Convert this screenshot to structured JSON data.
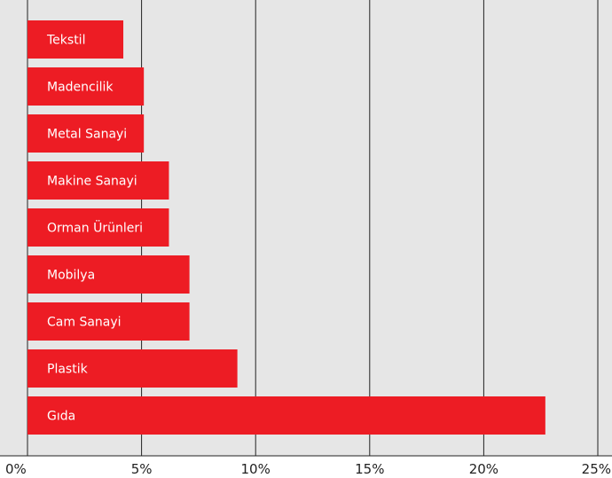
{
  "chart_data": {
    "type": "bar",
    "orientation": "horizontal",
    "categories": [
      "Tekstil",
      "Madencilik",
      "Metal Sanayi",
      "Makine Sanayi",
      "Orman Ürünleri",
      "Mobilya",
      "Cam Sanayi",
      "Plastik",
      "Gıda"
    ],
    "values": [
      4.2,
      5.1,
      5.1,
      6.2,
      6.2,
      7.1,
      7.1,
      9.2,
      22.7
    ],
    "xlim": [
      0,
      25
    ],
    "xticks": [
      0,
      5,
      10,
      15,
      20,
      25
    ],
    "xtick_labels": [
      "0%",
      "5%",
      "10%",
      "15%",
      "20%",
      "25%"
    ],
    "title": "",
    "xlabel": "",
    "ylabel": "",
    "grid": "vertical lines",
    "legend": "none",
    "colors": {
      "bar": "#ed1c24",
      "plot_background": "#e6e6e6",
      "grid": "#222222",
      "label_text": "#ffffff"
    }
  }
}
